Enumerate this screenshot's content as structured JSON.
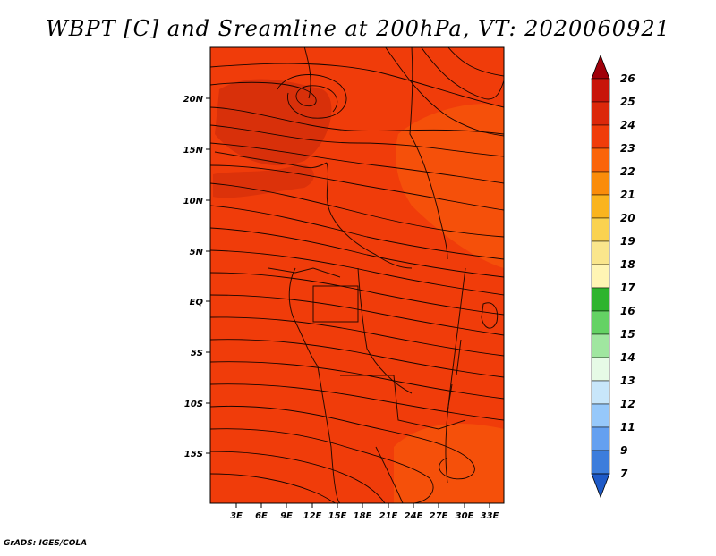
{
  "title": "WBPT [C] and Sreamline at 200hPa, VT: 2020060921",
  "credit": "GrADS: IGES/COLA",
  "map": {
    "lat_labels": [
      "20N",
      "15N",
      "10N",
      "5N",
      "EQ",
      "5S",
      "10S",
      "15S"
    ],
    "lon_labels": [
      "3E",
      "6E",
      "9E",
      "12E",
      "15E",
      "18E",
      "21E",
      "24E",
      "27E",
      "30E",
      "33E"
    ],
    "field_color": "#f03c0a"
  },
  "colorbar": {
    "labels": [
      "26",
      "25",
      "24",
      "23",
      "22",
      "21",
      "20",
      "19",
      "18",
      "17",
      "16",
      "15",
      "14",
      "13",
      "12",
      "11",
      "9",
      "7"
    ],
    "colors": [
      "#a0000a",
      "#c8140a",
      "#e6280a",
      "#f03c0a",
      "#fa6e0a",
      "#fa9614",
      "#fab41e",
      "#fad250",
      "#fae68c",
      "#fff5b4",
      "#2eb42e",
      "#64d264",
      "#a0e6a0",
      "#e6fae6",
      "#c8e6fa",
      "#96c8fa",
      "#64a0f0",
      "#3c7ddc",
      "#1e5ac8"
    ]
  }
}
